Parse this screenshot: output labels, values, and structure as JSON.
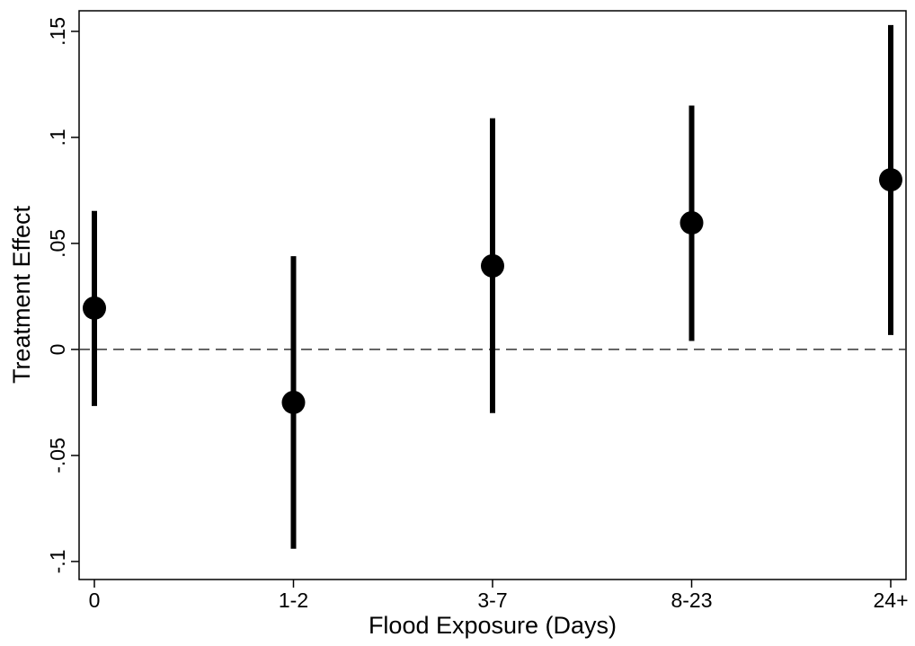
{
  "chart_data": {
    "type": "errorbar",
    "x_label": "Flood Exposure (Days)",
    "y_label": "Treatment Effect",
    "categories": [
      "0",
      "1-2",
      "3-7",
      "8-23",
      "24+"
    ],
    "values": [
      0.0195,
      -0.025,
      0.0394,
      0.0597,
      0.08
    ],
    "lower": [
      -0.0267,
      -0.094,
      -0.03,
      0.004,
      0.0068
    ],
    "upper": [
      0.0653,
      0.044,
      0.109,
      0.115,
      0.153
    ],
    "color": "#000000",
    "ylim": [
      -0.1085,
      0.1597
    ],
    "yticks": [
      {
        "value": -0.1,
        "label": "-.1"
      },
      {
        "value": -0.05,
        "label": "-.05"
      },
      0,
      {
        "value": 0.05,
        "label": ".05"
      },
      {
        "value": 0.1,
        "label": ".1"
      },
      {
        "value": 0.15,
        "label": ".15"
      }
    ],
    "reference_line": 0,
    "grid": false
  }
}
